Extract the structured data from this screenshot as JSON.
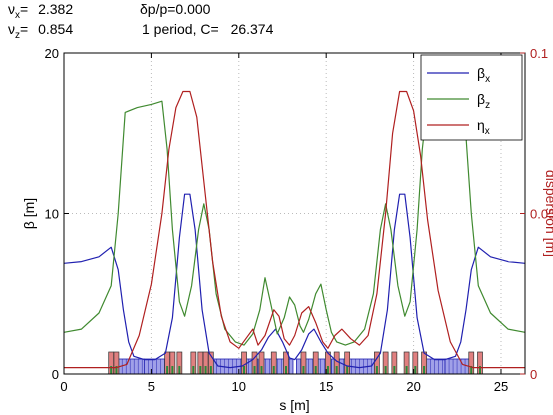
{
  "header": {
    "nux_label": "ν",
    "nux_sub": "x",
    "nux_eq": "=",
    "nux_value": "2.382",
    "dp_label": "δp/p=0.000",
    "nuz_label": "ν",
    "nuz_sub": "z",
    "nuz_eq": "=",
    "nuz_value": "0.854",
    "period_label": "1 period, C=",
    "circumference": "26.374"
  },
  "chart_data": {
    "type": "line",
    "xlabel": "s [m]",
    "ylabel": "β [m]",
    "ylabel_right": "dispersion [m]",
    "xlim": [
      0,
      26.374
    ],
    "ylim": [
      0,
      20
    ],
    "ylim_right": [
      0,
      0.1
    ],
    "x_ticks": [
      "0",
      "5",
      "10",
      "15",
      "20",
      "25"
    ],
    "y_ticks": [
      "0",
      "10",
      "20"
    ],
    "y_ticks_right": [
      "0",
      "0.05",
      "0.1"
    ],
    "grid": true,
    "legend_position": "top-right",
    "colors": {
      "betax": "#2020b0",
      "betaz": "#408a30",
      "etax": "#b02020",
      "magnet": "#a0a0e8",
      "quad_accent": "#e08080"
    },
    "series": [
      {
        "name": "β",
        "name_sub": "x",
        "axis": "left",
        "color": "#2020b0",
        "points": [
          [
            0,
            6.9
          ],
          [
            1.0,
            7.0
          ],
          [
            2.0,
            7.3
          ],
          [
            2.7,
            7.9
          ],
          [
            3.1,
            6.5
          ],
          [
            3.4,
            4.0
          ],
          [
            3.7,
            2.0
          ],
          [
            4.0,
            1.1
          ],
          [
            4.6,
            0.9
          ],
          [
            5.2,
            0.9
          ],
          [
            5.8,
            1.3
          ],
          [
            6.2,
            3.5
          ],
          [
            6.6,
            8.5
          ],
          [
            6.9,
            11.2
          ],
          [
            7.2,
            11.2
          ],
          [
            7.5,
            9.0
          ],
          [
            7.9,
            4.0
          ],
          [
            8.3,
            1.3
          ],
          [
            8.8,
            0.5
          ],
          [
            9.5,
            0.4
          ],
          [
            10.2,
            0.5
          ],
          [
            10.8,
            0.9
          ],
          [
            11.3,
            1.5
          ],
          [
            11.7,
            2.3
          ],
          [
            12.1,
            2.8
          ],
          [
            12.5,
            2.0
          ],
          [
            12.9,
            1.0
          ],
          [
            13.2,
            0.9
          ],
          [
            13.6,
            1.5
          ],
          [
            14.0,
            2.5
          ],
          [
            14.3,
            2.8
          ],
          [
            14.7,
            2.0
          ],
          [
            15.1,
            1.3
          ],
          [
            15.6,
            0.8
          ],
          [
            16.2,
            0.5
          ],
          [
            16.9,
            0.4
          ],
          [
            17.6,
            0.5
          ],
          [
            18.1,
            1.3
          ],
          [
            18.5,
            4.0
          ],
          [
            18.9,
            9.0
          ],
          [
            19.2,
            11.2
          ],
          [
            19.5,
            11.2
          ],
          [
            19.8,
            8.5
          ],
          [
            20.2,
            3.5
          ],
          [
            20.6,
            1.3
          ],
          [
            21.2,
            0.9
          ],
          [
            21.8,
            0.9
          ],
          [
            22.4,
            1.1
          ],
          [
            22.7,
            2.0
          ],
          [
            23.0,
            4.0
          ],
          [
            23.3,
            6.5
          ],
          [
            23.7,
            7.9
          ],
          [
            24.4,
            7.3
          ],
          [
            25.4,
            7.0
          ],
          [
            26.374,
            6.9
          ]
        ]
      },
      {
        "name": "β",
        "name_sub": "z",
        "axis": "left",
        "color": "#408a30",
        "points": [
          [
            0,
            2.6
          ],
          [
            1.0,
            2.8
          ],
          [
            2.0,
            3.8
          ],
          [
            2.7,
            5.5
          ],
          [
            3.1,
            10.0
          ],
          [
            3.5,
            16.3
          ],
          [
            4.2,
            16.6
          ],
          [
            5.0,
            16.8
          ],
          [
            5.6,
            17.0
          ],
          [
            5.9,
            14.0
          ],
          [
            6.2,
            9.0
          ],
          [
            6.6,
            4.5
          ],
          [
            6.9,
            3.6
          ],
          [
            7.3,
            5.5
          ],
          [
            7.7,
            9.0
          ],
          [
            8.0,
            10.6
          ],
          [
            8.3,
            9.0
          ],
          [
            8.7,
            5.0
          ],
          [
            9.2,
            2.8
          ],
          [
            9.8,
            2.0
          ],
          [
            10.3,
            1.8
          ],
          [
            10.8,
            2.5
          ],
          [
            11.2,
            4.0
          ],
          [
            11.5,
            6.0
          ],
          [
            11.8,
            4.5
          ],
          [
            12.2,
            2.5
          ],
          [
            12.6,
            3.5
          ],
          [
            12.9,
            4.8
          ],
          [
            13.2,
            4.3
          ],
          [
            13.5,
            3.0
          ],
          [
            13.7,
            2.6
          ],
          [
            14.0,
            3.4
          ],
          [
            14.4,
            5.0
          ],
          [
            14.7,
            5.6
          ],
          [
            15.0,
            4.0
          ],
          [
            15.3,
            2.6
          ],
          [
            15.6,
            2.0
          ],
          [
            16.1,
            1.8
          ],
          [
            16.6,
            2.0
          ],
          [
            17.2,
            2.8
          ],
          [
            17.7,
            5.0
          ],
          [
            18.1,
            9.0
          ],
          [
            18.4,
            10.6
          ],
          [
            18.7,
            9.0
          ],
          [
            19.1,
            5.5
          ],
          [
            19.5,
            3.6
          ],
          [
            19.8,
            4.5
          ],
          [
            20.2,
            9.0
          ],
          [
            20.5,
            14.0
          ],
          [
            20.8,
            17.0
          ],
          [
            21.4,
            16.8
          ],
          [
            22.2,
            16.6
          ],
          [
            22.9,
            16.3
          ],
          [
            23.3,
            10.0
          ],
          [
            23.7,
            5.5
          ],
          [
            24.4,
            3.8
          ],
          [
            25.4,
            2.8
          ],
          [
            26.374,
            2.6
          ]
        ]
      },
      {
        "name": "η",
        "name_sub": "x",
        "axis": "right",
        "color": "#b02020",
        "points": [
          [
            0,
            0.002
          ],
          [
            3.0,
            0.002
          ],
          [
            3.6,
            0.003
          ],
          [
            4.3,
            0.012
          ],
          [
            5.0,
            0.028
          ],
          [
            5.6,
            0.05
          ],
          [
            6.0,
            0.07
          ],
          [
            6.4,
            0.083
          ],
          [
            6.8,
            0.088
          ],
          [
            7.2,
            0.088
          ],
          [
            7.6,
            0.08
          ],
          [
            8.0,
            0.06
          ],
          [
            8.5,
            0.035
          ],
          [
            9.0,
            0.018
          ],
          [
            9.5,
            0.01
          ],
          [
            10.0,
            0.008
          ],
          [
            10.4,
            0.011
          ],
          [
            10.8,
            0.014
          ],
          [
            11.1,
            0.009
          ],
          [
            11.5,
            0.012
          ],
          [
            12.0,
            0.02
          ],
          [
            12.3,
            0.018
          ],
          [
            12.6,
            0.011
          ],
          [
            12.9,
            0.009
          ],
          [
            13.2,
            0.012
          ],
          [
            13.6,
            0.019
          ],
          [
            14.0,
            0.021
          ],
          [
            14.4,
            0.016
          ],
          [
            14.8,
            0.01
          ],
          [
            15.1,
            0.008
          ],
          [
            15.5,
            0.012
          ],
          [
            15.9,
            0.014
          ],
          [
            16.4,
            0.011
          ],
          [
            16.9,
            0.009
          ],
          [
            17.4,
            0.012
          ],
          [
            17.9,
            0.025
          ],
          [
            18.4,
            0.05
          ],
          [
            18.8,
            0.075
          ],
          [
            19.2,
            0.088
          ],
          [
            19.6,
            0.088
          ],
          [
            20.0,
            0.082
          ],
          [
            20.4,
            0.068
          ],
          [
            20.8,
            0.048
          ],
          [
            21.4,
            0.026
          ],
          [
            22.1,
            0.01
          ],
          [
            22.8,
            0.003
          ],
          [
            23.4,
            0.002
          ],
          [
            26.374,
            0.002
          ]
        ]
      }
    ],
    "magnets": {
      "dipoles": [
        [
          3.1,
          4.6
        ],
        [
          4.6,
          5.9
        ],
        [
          8.5,
          11.1
        ],
        [
          11.3,
          13.1
        ],
        [
          13.3,
          15.1
        ],
        [
          15.3,
          17.9
        ],
        [
          20.5,
          21.8
        ],
        [
          21.8,
          23.3
        ]
      ],
      "quads": [
        2.7,
        3.0,
        5.9,
        6.2,
        6.6,
        7.4,
        7.8,
        8.1,
        8.4,
        10.3,
        10.9,
        11.3,
        12.0,
        12.7,
        13.7,
        14.4,
        15.1,
        15.6,
        16.2,
        17.9,
        18.4,
        18.9,
        19.6,
        20.1,
        20.6,
        23.3,
        23.8
      ]
    }
  }
}
